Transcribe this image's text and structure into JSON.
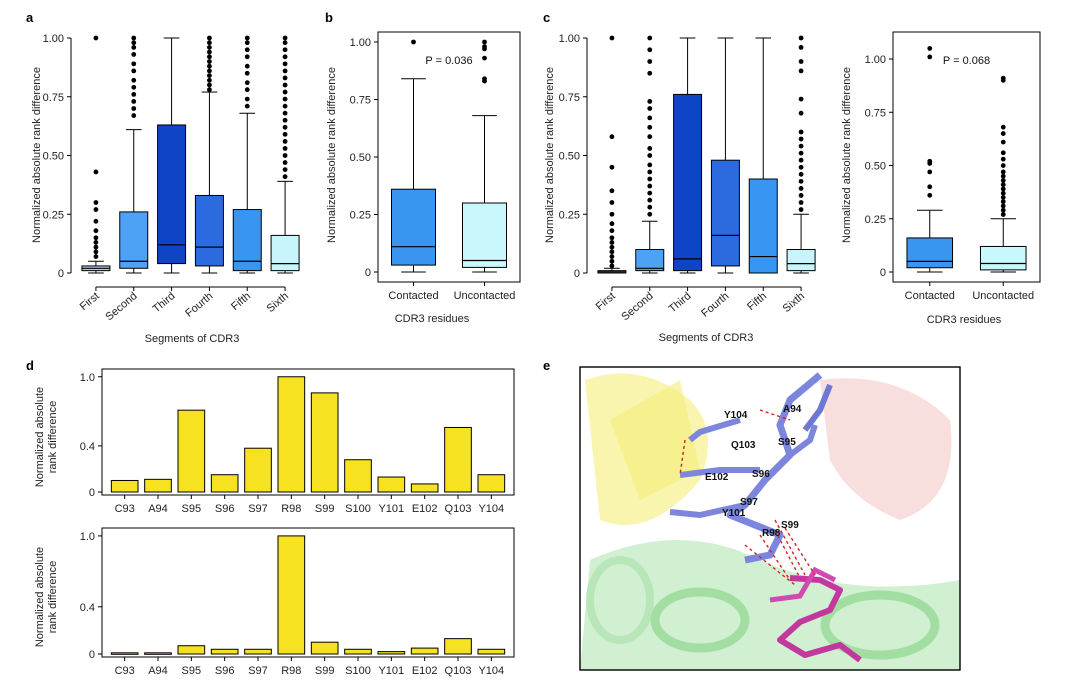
{
  "colors": {
    "seg": [
      "#aacdf9",
      "#4da2f5",
      "#0f44c6",
      "#2c6ae0",
      "#3896f2",
      "#c6f5fc"
    ],
    "contacted": "#3a95f1",
    "uncontacted": "#c9f8fc",
    "bar": "#f7e221",
    "backbone": "#7b86dc",
    "ligand": "#c2389e"
  },
  "panel_letters": {
    "a": "a",
    "b": "b",
    "c": "c",
    "d": "d",
    "e": "e"
  },
  "ylabel_box": "Normalized absolute rank difference",
  "ylabel_bar_lines": [
    "Normalized absolute",
    "rank difference"
  ],
  "xlabel_segments": "Segments of CDR3",
  "xlabel_residues": "CDR3 residues",
  "pvalue_b": "P = 0.036",
  "pvalue_d2": "P = 0.068",
  "structure_labels": [
    "Y104",
    "A94",
    "Q103",
    "S95",
    "E102",
    "S96",
    "S97",
    "Y101",
    "S99",
    "R98"
  ],
  "chart_data": [
    {
      "id": "a",
      "type": "box",
      "xlabel": "Segments of CDR3",
      "ylabel": "Normalized absolute rank difference",
      "ylim": [
        0,
        1
      ],
      "yticks": [
        "0",
        "0.25",
        "0.50",
        "0.75",
        "1.00"
      ],
      "categories": [
        "First",
        "Second",
        "Third",
        "Fourth",
        "Fifth",
        "Sixth"
      ],
      "boxes": [
        {
          "q1": 0.01,
          "median": 0.02,
          "q3": 0.03,
          "low": 0.0,
          "high": 0.05,
          "outliers": [
            0.07,
            0.09,
            0.11,
            0.13,
            0.15,
            0.18,
            0.22,
            0.27,
            0.3,
            0.43,
            1.0
          ]
        },
        {
          "q1": 0.02,
          "median": 0.05,
          "q3": 0.26,
          "low": 0.0,
          "high": 0.61,
          "outliers": [
            0.67,
            0.7,
            0.73,
            0.76,
            0.79,
            0.82,
            0.86,
            0.89,
            0.93,
            0.96,
            0.98,
            1.0
          ]
        },
        {
          "q1": 0.04,
          "median": 0.12,
          "q3": 0.63,
          "low": 0.0,
          "high": 1.0,
          "outliers": []
        },
        {
          "q1": 0.03,
          "median": 0.11,
          "q3": 0.33,
          "low": 0.0,
          "high": 0.77,
          "outliers": [
            0.78,
            0.8,
            0.82,
            0.84,
            0.86,
            0.88,
            0.9,
            0.92,
            0.94,
            0.96,
            0.98,
            1.0
          ]
        },
        {
          "q1": 0.01,
          "median": 0.05,
          "q3": 0.27,
          "low": 0.0,
          "high": 0.68,
          "outliers": [
            0.71,
            0.74,
            0.78,
            0.81,
            0.85,
            0.88,
            0.92,
            0.95,
            0.98,
            1.0
          ]
        },
        {
          "q1": 0.01,
          "median": 0.04,
          "q3": 0.16,
          "low": 0.0,
          "high": 0.39,
          "outliers": [
            0.41,
            0.44,
            0.47,
            0.5,
            0.53,
            0.56,
            0.59,
            0.62,
            0.65,
            0.68,
            0.71,
            0.74,
            0.77,
            0.8,
            0.83,
            0.86,
            0.89,
            0.92,
            0.95,
            0.98,
            1.0
          ]
        }
      ]
    },
    {
      "id": "b",
      "type": "box",
      "xlabel": "CDR3 residues",
      "ylabel": "Normalized absolute rank difference",
      "ylim": [
        0,
        1
      ],
      "yticks": [
        "0",
        "0.25",
        "0.50",
        "0.75",
        "1.00"
      ],
      "categories": [
        "Contacted",
        "Uncontacted"
      ],
      "annotation": "P = 0.036",
      "boxes": [
        {
          "q1": 0.03,
          "median": 0.11,
          "q3": 0.36,
          "low": 0.0,
          "high": 0.84,
          "outliers": [
            1.0
          ]
        },
        {
          "q1": 0.02,
          "median": 0.05,
          "q3": 0.3,
          "low": 0.0,
          "high": 0.68,
          "outliers": [
            0.83,
            0.84,
            0.93,
            0.97,
            0.98,
            1.0
          ]
        }
      ]
    },
    {
      "id": "c",
      "type": "box",
      "xlabel": "Segments of CDR3",
      "ylabel": "Normalized absolute rank difference",
      "ylim": [
        0,
        1
      ],
      "yticks": [
        "0",
        "0.25",
        "0.50",
        "0.75",
        "1.00"
      ],
      "categories": [
        "First",
        "Second",
        "Third",
        "Fourth",
        "Fifth",
        "Sixth"
      ],
      "boxes": [
        {
          "q1": 0.0,
          "median": 0.005,
          "q3": 0.01,
          "low": 0.0,
          "high": 0.02,
          "outliers": [
            0.03,
            0.05,
            0.07,
            0.09,
            0.11,
            0.13,
            0.15,
            0.18,
            0.21,
            0.25,
            0.3,
            0.35,
            0.45,
            0.58,
            1.0
          ]
        },
        {
          "q1": 0.01,
          "median": 0.02,
          "q3": 0.1,
          "low": 0.0,
          "high": 0.22,
          "outliers": [
            0.25,
            0.28,
            0.31,
            0.34,
            0.37,
            0.4,
            0.43,
            0.46,
            0.5,
            0.53,
            0.58,
            0.62,
            0.66,
            0.7,
            0.73,
            0.85,
            0.9,
            0.95,
            1.0
          ]
        },
        {
          "q1": 0.01,
          "median": 0.06,
          "q3": 0.76,
          "low": 0.0,
          "high": 1.0,
          "outliers": []
        },
        {
          "q1": 0.03,
          "median": 0.16,
          "q3": 0.48,
          "low": 0.0,
          "high": 1.0,
          "outliers": []
        },
        {
          "q1": 0.0,
          "median": 0.07,
          "q3": 0.4,
          "low": 0.0,
          "high": 1.0,
          "outliers": []
        },
        {
          "q1": 0.01,
          "median": 0.04,
          "q3": 0.1,
          "low": 0.0,
          "high": 0.25,
          "outliers": [
            0.27,
            0.3,
            0.33,
            0.36,
            0.39,
            0.42,
            0.45,
            0.48,
            0.51,
            0.54,
            0.57,
            0.6,
            0.68,
            0.74,
            0.86,
            0.9,
            0.96,
            1.0
          ]
        }
      ]
    },
    {
      "id": "c2",
      "type": "box",
      "xlabel": "CDR3 residues",
      "ylabel": "Normalized absolute rank difference",
      "ylim": [
        0,
        1.08
      ],
      "yticks": [
        "0",
        "0.25",
        "0.50",
        "0.75",
        "1.00"
      ],
      "categories": [
        "Contacted",
        "Uncontacted"
      ],
      "annotation": "P = 0.068",
      "boxes": [
        {
          "q1": 0.02,
          "median": 0.05,
          "q3": 0.16,
          "low": 0.0,
          "high": 0.29,
          "outliers": [
            0.36,
            0.4,
            0.47,
            0.51,
            0.52,
            1.01,
            1.05
          ]
        },
        {
          "q1": 0.01,
          "median": 0.04,
          "q3": 0.12,
          "low": 0.0,
          "high": 0.25,
          "outliers": [
            0.27,
            0.29,
            0.31,
            0.33,
            0.35,
            0.37,
            0.39,
            0.41,
            0.43,
            0.45,
            0.47,
            0.5,
            0.53,
            0.56,
            0.61,
            0.65,
            0.68,
            0.9,
            0.91
          ]
        }
      ]
    },
    {
      "id": "d-top",
      "type": "bar",
      "ylabel": "Normalized absolute rank difference",
      "ylim": [
        0,
        1.05
      ],
      "yticks": [
        "0",
        "0.4",
        "1.0"
      ],
      "categories": [
        "C93",
        "A94",
        "S95",
        "S96",
        "S97",
        "R98",
        "S99",
        "S100",
        "Y101",
        "E102",
        "Q103",
        "Y104"
      ],
      "values": [
        0.1,
        0.11,
        0.71,
        0.15,
        0.38,
        1.0,
        0.86,
        0.28,
        0.13,
        0.07,
        0.56,
        0.15
      ]
    },
    {
      "id": "d-bottom",
      "type": "bar",
      "ylabel": "Normalized absolute rank difference",
      "ylim": [
        0,
        1.05
      ],
      "yticks": [
        "0",
        "0.4",
        "1.0"
      ],
      "categories": [
        "C93",
        "A94",
        "S95",
        "S96",
        "S97",
        "R98",
        "S99",
        "S100",
        "Y101",
        "E102",
        "Q103",
        "Y104"
      ],
      "values": [
        0.01,
        0.01,
        0.07,
        0.04,
        0.04,
        1.0,
        0.1,
        0.04,
        0.02,
        0.05,
        0.13,
        0.04
      ]
    }
  ]
}
